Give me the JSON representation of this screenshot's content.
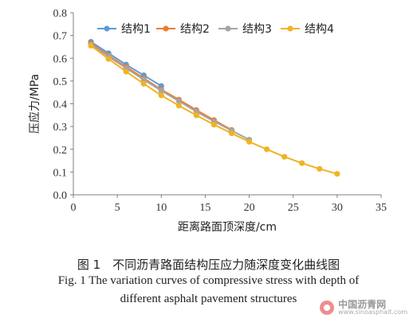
{
  "chart_data": {
    "type": "line",
    "xlabel": "距离路面顶深度/cm",
    "ylabel": "压应力/MPa",
    "xlim": [
      0,
      35
    ],
    "ylim": [
      0,
      0.8
    ],
    "xticks": [
      "0",
      "5",
      "10",
      "15",
      "20",
      "25",
      "30",
      "35"
    ],
    "yticks": [
      "0.0",
      "0.1",
      "0.2",
      "0.3",
      "0.4",
      "0.5",
      "0.6",
      "0.7",
      "0.8"
    ],
    "grid": false,
    "legend_position": "top-left",
    "series": [
      {
        "name": "结构1",
        "color": "#5b9bd5",
        "x": [
          2,
          4,
          6,
          8,
          10
        ],
        "y": [
          0.672,
          0.622,
          0.572,
          0.525,
          0.478
        ]
      },
      {
        "name": "结构2",
        "color": "#ed7d31",
        "x": [
          2,
          4,
          6,
          8,
          10,
          12,
          14,
          16,
          18
        ],
        "y": [
          0.665,
          0.612,
          0.562,
          0.512,
          0.462,
          0.418,
          0.372,
          0.328,
          0.285
        ]
      },
      {
        "name": "结构3",
        "color": "#a5a5a5",
        "x": [
          2,
          4,
          6,
          8,
          10,
          12,
          14,
          16,
          18,
          20
        ],
        "y": [
          0.66,
          0.607,
          0.556,
          0.506,
          0.457,
          0.412,
          0.365,
          0.322,
          0.282,
          0.242
        ]
      },
      {
        "name": "结构4",
        "color": "#f0b323",
        "x": [
          2,
          4,
          6,
          8,
          10,
          12,
          14,
          16,
          18,
          20,
          22,
          24,
          26,
          28,
          30
        ],
        "y": [
          0.655,
          0.597,
          0.541,
          0.488,
          0.437,
          0.392,
          0.349,
          0.308,
          0.27,
          0.233,
          0.2,
          0.167,
          0.139,
          0.114,
          0.092
        ]
      }
    ]
  },
  "caption": {
    "zh": "图 1　不同沥青路面结构压应力随深度变化曲线图",
    "en_line1": "Fig. 1 The variation curves of compressive stress with depth of",
    "en_line2": "different asphalt pavement structures"
  },
  "watermark": {
    "name": "中国沥青网",
    "url": "www.sinoasphalt.com"
  }
}
